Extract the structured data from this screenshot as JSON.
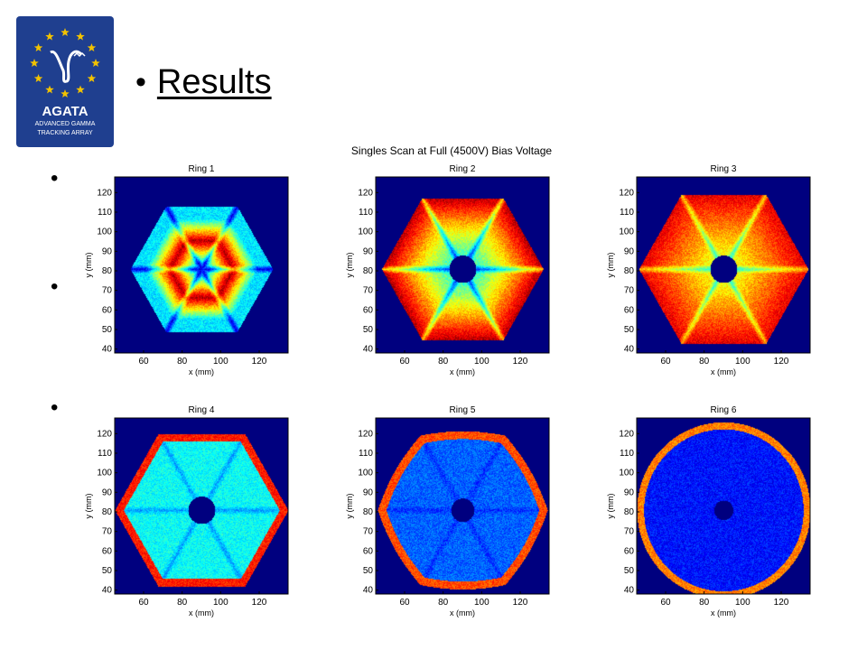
{
  "logo": {
    "text_main": "AGATA",
    "text_sub1": "ADVANCED GAMMA",
    "text_sub2": "TRACKING ARRAY",
    "color_bg": "#1f3f8f",
    "color_star": "#f2c200",
    "icon": "eu-stars-gamma-logo-icon"
  },
  "slide": {
    "title": "Results",
    "bullet": "•"
  },
  "chart_data": {
    "type": "heatmap",
    "title": "Singles Scan at Full (4500V) Bias Voltage",
    "xlabel": "x (mm)",
    "ylabel": "y (mm)",
    "xlim": [
      45,
      135
    ],
    "ylim": [
      38,
      128
    ],
    "xticks": [
      60,
      80,
      100,
      120
    ],
    "yticks": [
      40,
      50,
      60,
      70,
      80,
      90,
      100,
      110,
      120
    ],
    "colormap": "jet",
    "background_color": "#00007f",
    "panels": [
      {
        "title": "Ring  1",
        "shape": "hexagon",
        "center": [
          90,
          81
        ],
        "radius": 37,
        "hole_radius": 0,
        "pattern": "six red petals around center, blue segment boundaries",
        "intensity": "high"
      },
      {
        "title": "Ring  2",
        "shape": "hexagon",
        "center": [
          90,
          81
        ],
        "radius": 42,
        "hole_radius": 7,
        "pattern": "red at outer sectors, light blue spokes",
        "intensity": "high"
      },
      {
        "title": "Ring  3",
        "shape": "hexagon",
        "center": [
          90,
          81
        ],
        "radius": 44,
        "hole_radius": 7,
        "pattern": "yellow-orange sectors, red at corners",
        "intensity": "medium-high"
      },
      {
        "title": "Ring  4",
        "shape": "hexagon",
        "center": [
          90,
          81
        ],
        "radius": 45,
        "hole_radius": 7,
        "pattern": "cyan interior, red/yellow rim at edges",
        "intensity": "medium"
      },
      {
        "title": "Ring  5",
        "shape": "rounded-hexagon",
        "center": [
          90,
          81
        ],
        "radius": 45,
        "hole_radius": 6,
        "pattern": "blue interior, red rim",
        "intensity": "low"
      },
      {
        "title": "Ring  6",
        "shape": "circle",
        "center": [
          90,
          81
        ],
        "radius": 45,
        "hole_radius": 5,
        "pattern": "dark blue interior, red rim segments",
        "intensity": "low"
      }
    ]
  }
}
